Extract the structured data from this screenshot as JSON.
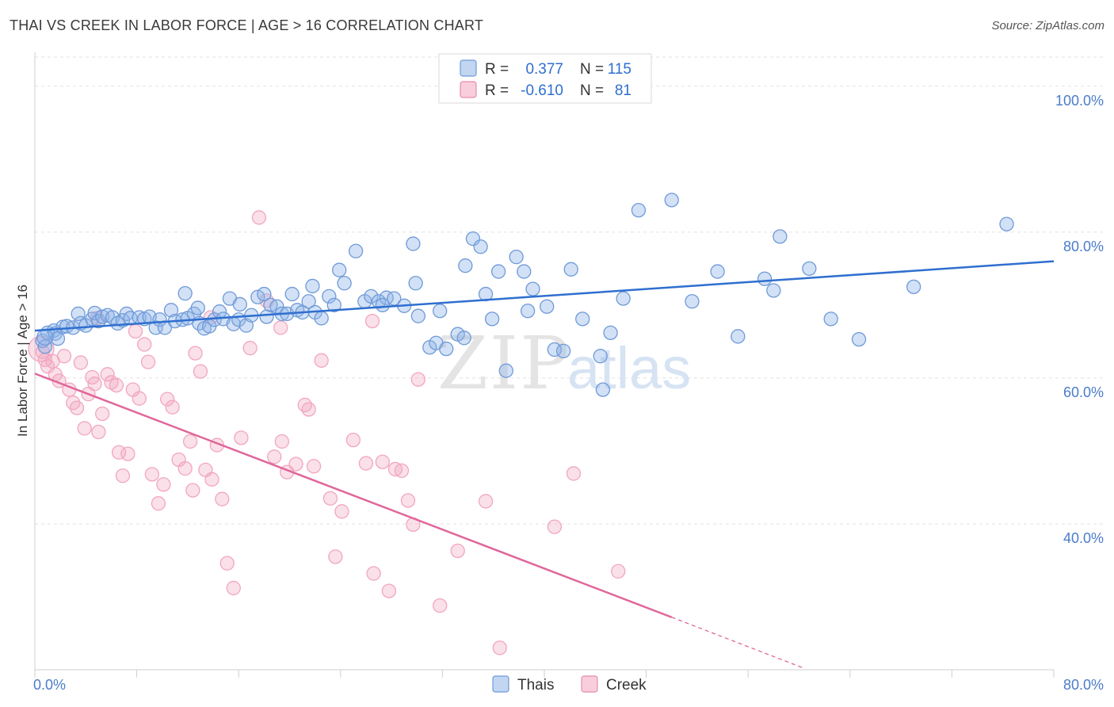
{
  "header": {
    "title": "THAI VS CREEK IN LABOR FORCE | AGE > 16 CORRELATION CHART",
    "source": "Source: ZipAtlas.com"
  },
  "watermark": {
    "zip": "ZIP",
    "atlas": "atlas"
  },
  "legend": {
    "r_label": "R =",
    "n_label": "N =",
    "rows": [
      {
        "r": "0.377",
        "n": "115",
        "color": "#8fb4e8"
      },
      {
        "r": "-0.610",
        "n": "81",
        "color": "#f2a6bf"
      }
    ]
  },
  "chart_data": {
    "type": "scatter",
    "title": "THAI VS CREEK IN LABOR FORCE | AGE > 16 CORRELATION CHART",
    "xlabel": "",
    "ylabel": "In Labor Force | Age > 16",
    "xlim": [
      0,
      80
    ],
    "ylim": [
      20,
      104
    ],
    "x_tick_labels": [
      "0.0%",
      "80.0%"
    ],
    "y_ticks": [
      40,
      60,
      80,
      100
    ],
    "y_tick_labels": [
      "40.0%",
      "60.0%",
      "80.0%",
      "100.0%"
    ],
    "grid": "horizontal dashed",
    "legend_position": "top-center",
    "series": [
      {
        "name": "Thais",
        "color": "#8fb4e8",
        "line_color": "#2f6fcf",
        "trend": {
          "x": [
            0,
            80
          ],
          "y": [
            66.5,
            76.0
          ]
        },
        "points": [
          [
            0.6,
            65.1
          ],
          [
            0.8,
            64.3
          ],
          [
            1.0,
            66.2
          ],
          [
            1.5,
            66.5
          ],
          [
            1.6,
            66.1
          ],
          [
            1.8,
            65.4
          ],
          [
            2.2,
            67.0
          ],
          [
            2.5,
            67.1
          ],
          [
            3.0,
            66.9
          ],
          [
            3.4,
            68.8
          ],
          [
            3.6,
            67.5
          ],
          [
            4.0,
            67.2
          ],
          [
            4.5,
            68.1
          ],
          [
            4.7,
            68.9
          ],
          [
            5.0,
            67.8
          ],
          [
            5.3,
            68.4
          ],
          [
            5.7,
            68.6
          ],
          [
            6.1,
            68.3
          ],
          [
            6.5,
            67.5
          ],
          [
            6.9,
            67.9
          ],
          [
            7.2,
            68.8
          ],
          [
            7.5,
            68.2
          ],
          [
            8.2,
            68.3
          ],
          [
            8.6,
            68.1
          ],
          [
            9.0,
            68.4
          ],
          [
            9.5,
            66.9
          ],
          [
            9.8,
            68.0
          ],
          [
            10.2,
            66.9
          ],
          [
            10.7,
            69.3
          ],
          [
            11.0,
            67.8
          ],
          [
            11.6,
            68.0
          ],
          [
            12.0,
            68.2
          ],
          [
            12.5,
            68.8
          ],
          [
            12.9,
            67.5
          ],
          [
            13.3,
            66.8
          ],
          [
            13.7,
            67.1
          ],
          [
            14.1,
            68.0
          ],
          [
            14.5,
            69.1
          ],
          [
            14.8,
            68.1
          ],
          [
            15.3,
            70.9
          ],
          [
            15.6,
            67.4
          ],
          [
            16.0,
            68.0
          ],
          [
            16.6,
            67.2
          ],
          [
            17.0,
            68.6
          ],
          [
            17.5,
            71.1
          ],
          [
            18.0,
            71.5
          ],
          [
            18.5,
            70.0
          ],
          [
            19.0,
            69.8
          ],
          [
            19.4,
            68.8
          ],
          [
            19.8,
            68.8
          ],
          [
            20.2,
            71.5
          ],
          [
            20.6,
            69.3
          ],
          [
            21.0,
            69.0
          ],
          [
            21.5,
            70.5
          ],
          [
            22.0,
            69.0
          ],
          [
            22.5,
            68.2
          ],
          [
            23.1,
            71.2
          ],
          [
            23.5,
            70.0
          ],
          [
            23.9,
            74.8
          ],
          [
            24.3,
            73.0
          ],
          [
            25.2,
            77.4
          ],
          [
            25.9,
            70.5
          ],
          [
            26.4,
            71.2
          ],
          [
            27.0,
            70.5
          ],
          [
            27.6,
            71.0
          ],
          [
            28.2,
            70.9
          ],
          [
            29.0,
            69.9
          ],
          [
            29.7,
            78.4
          ],
          [
            30.1,
            68.5
          ],
          [
            31.0,
            64.2
          ],
          [
            31.5,
            64.8
          ],
          [
            31.8,
            69.2
          ],
          [
            32.3,
            64.0
          ],
          [
            33.2,
            66.0
          ],
          [
            33.8,
            75.4
          ],
          [
            34.4,
            79.1
          ],
          [
            35.0,
            78.0
          ],
          [
            35.4,
            71.5
          ],
          [
            35.9,
            68.1
          ],
          [
            36.4,
            74.6
          ],
          [
            37.0,
            61.0
          ],
          [
            37.8,
            76.6
          ],
          [
            38.4,
            74.6
          ],
          [
            38.7,
            69.2
          ],
          [
            39.1,
            72.2
          ],
          [
            40.2,
            69.8
          ],
          [
            40.8,
            63.9
          ],
          [
            41.5,
            63.7
          ],
          [
            42.1,
            74.9
          ],
          [
            43.0,
            68.1
          ],
          [
            44.4,
            63.0
          ],
          [
            45.2,
            66.2
          ],
          [
            46.2,
            70.9
          ],
          [
            47.4,
            83.0
          ],
          [
            50.0,
            84.4
          ],
          [
            51.6,
            70.5
          ],
          [
            53.6,
            74.6
          ],
          [
            55.2,
            65.7
          ],
          [
            57.3,
            73.6
          ],
          [
            58.0,
            72.0
          ],
          [
            58.5,
            79.4
          ],
          [
            60.8,
            75.0
          ],
          [
            62.5,
            68.1
          ],
          [
            64.7,
            65.3
          ],
          [
            69.0,
            72.5
          ],
          [
            76.3,
            81.1
          ],
          [
            11.8,
            71.6
          ],
          [
            12.8,
            69.6
          ],
          [
            16.1,
            70.1
          ],
          [
            18.2,
            68.4
          ],
          [
            21.8,
            72.6
          ],
          [
            27.3,
            70.0
          ],
          [
            29.9,
            73.0
          ],
          [
            44.6,
            58.4
          ],
          [
            33.7,
            65.5
          ]
        ]
      },
      {
        "name": "Creek",
        "color": "#f2a6bf",
        "line_color": "#e0679a",
        "trend": {
          "x": [
            0,
            50
          ],
          "y": [
            60.6,
            27.2
          ]
        },
        "trend_dashed": {
          "x": [
            50,
            60.4
          ],
          "y": [
            27.2,
            20.2
          ]
        },
        "points": [
          [
            0.6,
            63.6
          ],
          [
            0.8,
            62.5
          ],
          [
            1.0,
            61.6
          ],
          [
            1.4,
            62.3
          ],
          [
            1.6,
            60.5
          ],
          [
            1.9,
            59.6
          ],
          [
            2.3,
            63.0
          ],
          [
            2.7,
            58.4
          ],
          [
            3.0,
            56.6
          ],
          [
            3.3,
            55.9
          ],
          [
            3.6,
            62.1
          ],
          [
            3.9,
            53.1
          ],
          [
            4.2,
            57.8
          ],
          [
            4.5,
            60.1
          ],
          [
            4.7,
            59.2
          ],
          [
            5.0,
            52.6
          ],
          [
            5.3,
            55.1
          ],
          [
            5.7,
            60.5
          ],
          [
            6.0,
            59.4
          ],
          [
            6.4,
            59.0
          ],
          [
            6.6,
            49.8
          ],
          [
            6.9,
            46.6
          ],
          [
            7.3,
            49.6
          ],
          [
            7.7,
            58.4
          ],
          [
            8.2,
            57.2
          ],
          [
            8.6,
            64.6
          ],
          [
            8.9,
            62.2
          ],
          [
            9.2,
            46.8
          ],
          [
            9.7,
            42.8
          ],
          [
            10.1,
            45.4
          ],
          [
            10.4,
            57.1
          ],
          [
            10.8,
            56.0
          ],
          [
            11.3,
            48.8
          ],
          [
            11.8,
            47.6
          ],
          [
            12.2,
            51.3
          ],
          [
            12.6,
            63.4
          ],
          [
            13.0,
            60.9
          ],
          [
            13.4,
            47.4
          ],
          [
            13.9,
            46.1
          ],
          [
            14.3,
            50.8
          ],
          [
            14.7,
            43.4
          ],
          [
            15.1,
            34.6
          ],
          [
            15.6,
            31.2
          ],
          [
            16.2,
            51.8
          ],
          [
            16.9,
            64.1
          ],
          [
            17.6,
            82.0
          ],
          [
            18.2,
            70.6
          ],
          [
            18.8,
            49.2
          ],
          [
            19.4,
            51.3
          ],
          [
            19.8,
            47.1
          ],
          [
            20.5,
            48.2
          ],
          [
            21.2,
            56.3
          ],
          [
            21.5,
            55.7
          ],
          [
            21.9,
            47.9
          ],
          [
            22.5,
            62.4
          ],
          [
            23.2,
            43.5
          ],
          [
            23.6,
            35.5
          ],
          [
            24.1,
            41.7
          ],
          [
            25.0,
            51.5
          ],
          [
            26.0,
            48.3
          ],
          [
            26.6,
            33.2
          ],
          [
            27.3,
            48.5
          ],
          [
            27.8,
            30.8
          ],
          [
            28.3,
            47.5
          ],
          [
            28.8,
            47.3
          ],
          [
            29.3,
            43.2
          ],
          [
            29.7,
            39.9
          ],
          [
            30.1,
            59.8
          ],
          [
            31.8,
            28.8
          ],
          [
            33.2,
            36.3
          ],
          [
            35.4,
            43.1
          ],
          [
            36.5,
            23.0
          ],
          [
            40.8,
            39.6
          ],
          [
            42.3,
            46.9
          ],
          [
            45.8,
            33.5
          ],
          [
            4.9,
            68.2
          ],
          [
            7.9,
            66.4
          ],
          [
            13.8,
            68.3
          ],
          [
            19.3,
            66.9
          ],
          [
            26.5,
            67.8
          ],
          [
            12.4,
            44.6
          ]
        ]
      }
    ]
  },
  "bottom_legend": {
    "items": [
      "Thais",
      "Creek"
    ]
  }
}
